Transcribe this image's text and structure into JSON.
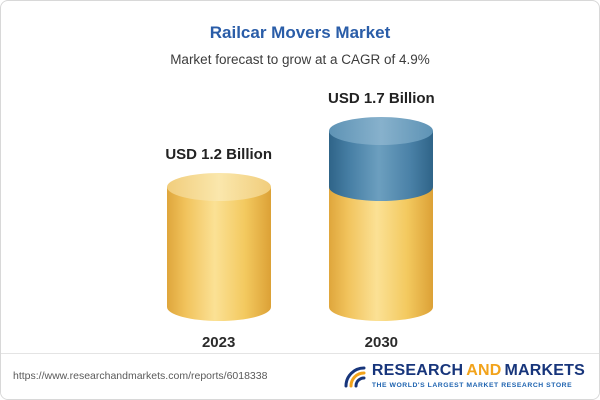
{
  "header": {
    "title": "Railcar Movers Market",
    "subtitle": "Market forecast to grow at a CAGR of 4.9%"
  },
  "chart_data": {
    "type": "bar",
    "style": "3d-cylinder",
    "title": "Railcar Movers Market",
    "subtitle": "Market forecast to grow at a CAGR of 4.9%",
    "cagr_percent": 4.9,
    "unit": "USD Billion",
    "categories": [
      "2023",
      "2030"
    ],
    "values": [
      1.2,
      1.7
    ],
    "value_labels": [
      "USD 1.2 Billion",
      "USD 1.7 Billion"
    ],
    "series": [
      {
        "name": "market size (base)",
        "color": "#F3C95F",
        "values": [
          1.2,
          1.2
        ]
      },
      {
        "name": "forecast growth to 2030",
        "color": "#3E7CA8",
        "values": [
          0,
          0.5
        ]
      }
    ],
    "legend": false,
    "axes_visible": false,
    "ylim": [
      0,
      1.7
    ]
  },
  "colors": {
    "title_blue": "#2A5DA8",
    "bar_yellow": "#F3C95F",
    "bar_blue": "#3E7CA8",
    "logo_navy": "#17357B",
    "logo_orange": "#F2A31B"
  },
  "footer": {
    "url": "https://www.researchandmarkets.com/reports/6018338",
    "logo": {
      "word1": "RESEARCH",
      "word2": "AND",
      "word3": "MARKETS",
      "tagline": "THE WORLD'S LARGEST MARKET RESEARCH STORE"
    }
  }
}
